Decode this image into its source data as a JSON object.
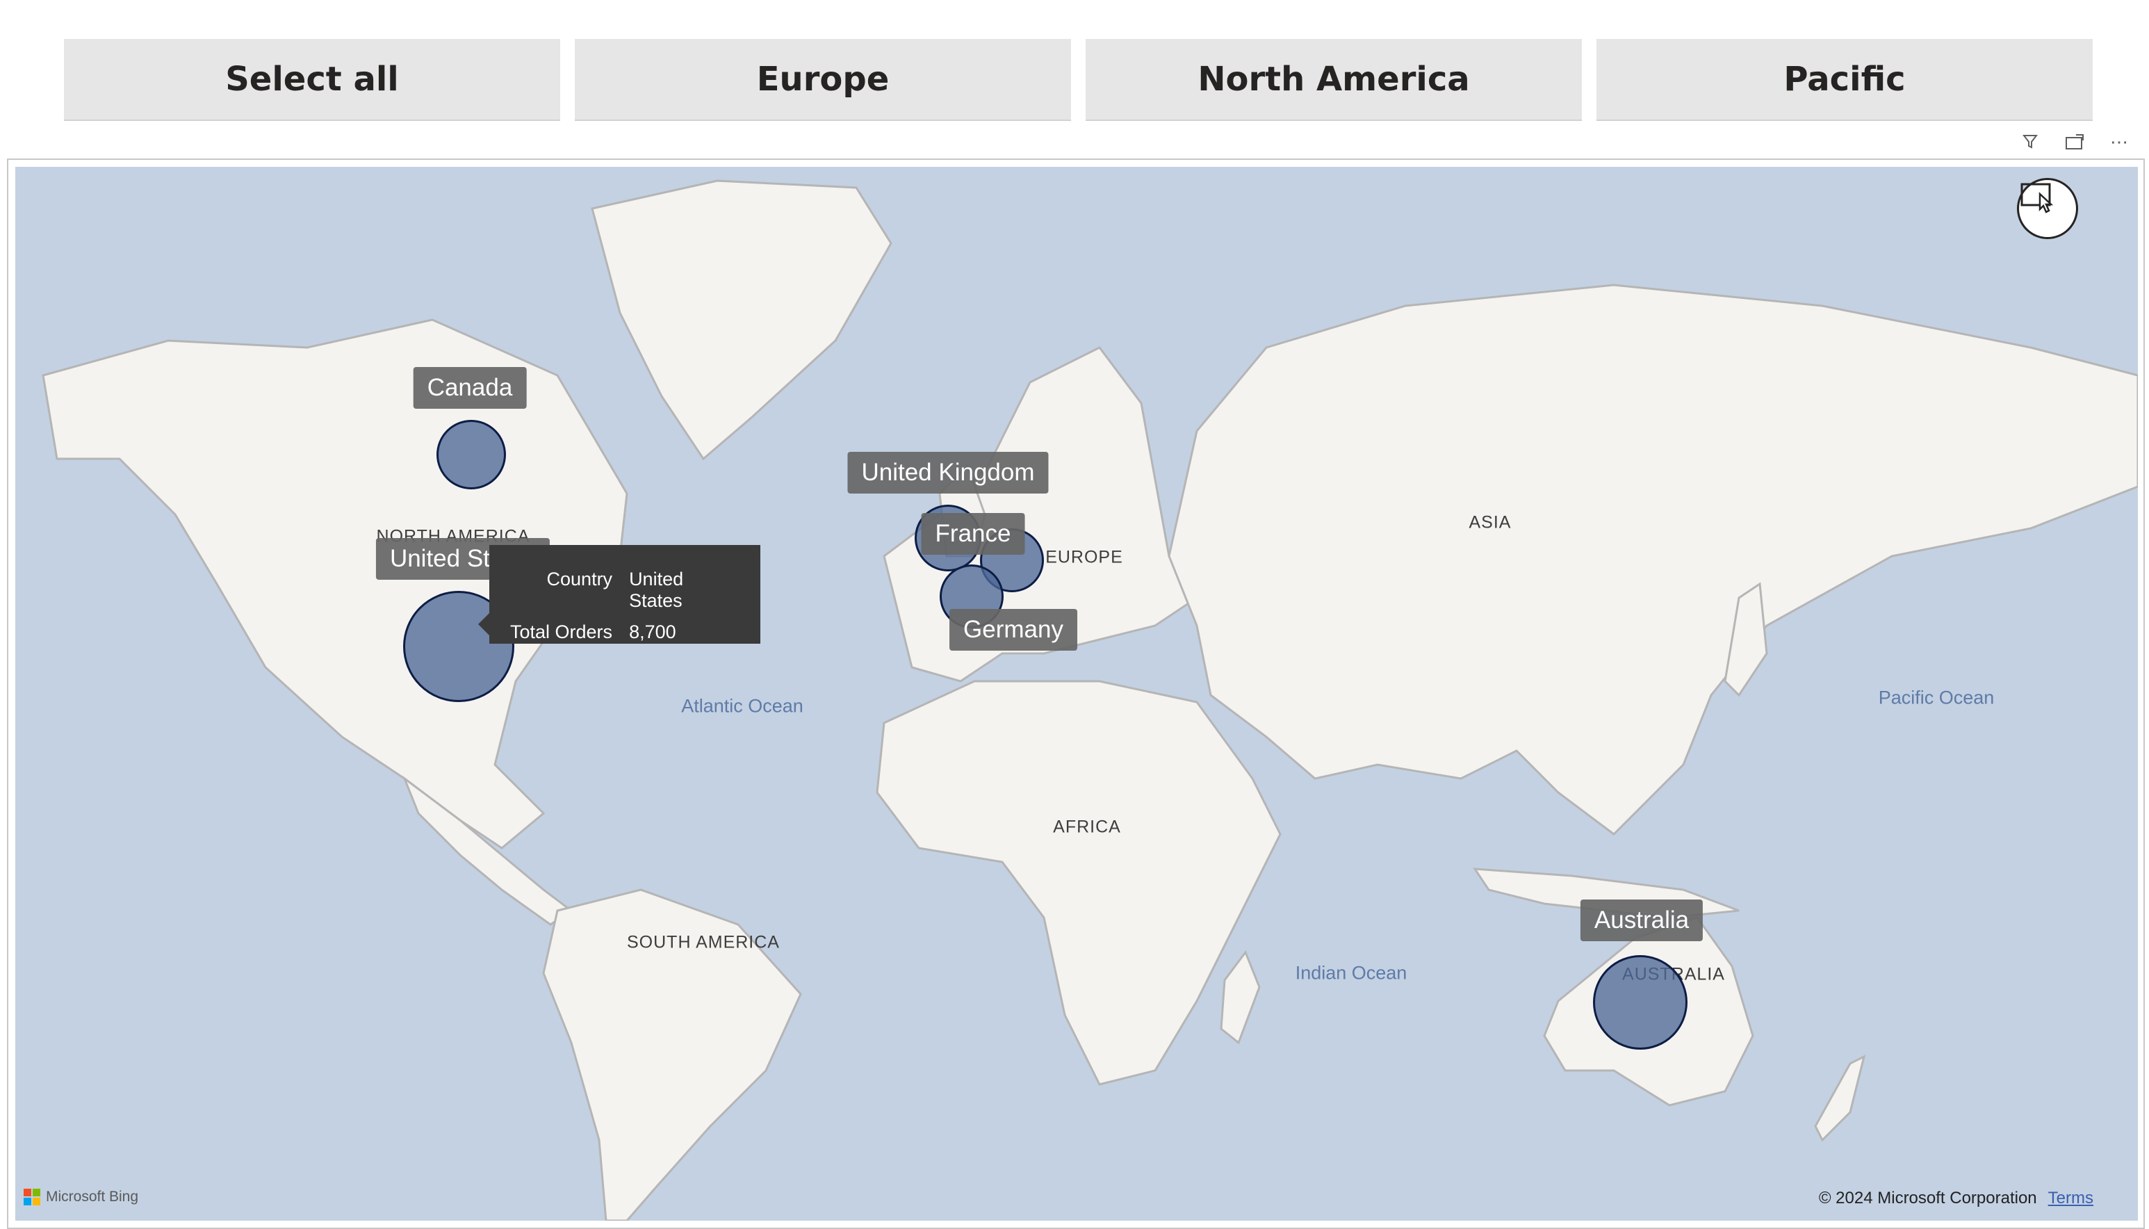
{
  "slicer": {
    "buttons": [
      "Select all",
      "Europe",
      "North America",
      "Pacific"
    ]
  },
  "visual_header": {
    "filter_icon": "filter-icon",
    "focus_mode_icon": "focus-mode-icon",
    "more_options": "⋯"
  },
  "map": {
    "region_labels": [
      "NORTH AMERICA",
      "EUROPE",
      "ASIA",
      "AFRICA",
      "SOUTH AMERICA",
      "AUSTRALIA"
    ],
    "ocean_labels": [
      "Atlantic Ocean",
      "Pacific Ocean",
      "Indian Ocean"
    ],
    "data_points": [
      {
        "country": "United States",
        "total_orders": 8700
      },
      {
        "country": "Canada"
      },
      {
        "country": "United Kingdom"
      },
      {
        "country": "France"
      },
      {
        "country": "Germany"
      },
      {
        "country": "Australia"
      }
    ],
    "tooltip": {
      "country_label": "Country",
      "country_value": "United States",
      "orders_label": "Total Orders",
      "orders_value": "8,700"
    },
    "attribution": {
      "brand": "Microsoft Bing",
      "copyright": "© 2024 Microsoft Corporation",
      "terms": "Terms"
    },
    "colors": {
      "water": "#c3d1e3",
      "land": "#f5f3f0",
      "bubble_fill": "#4d6896",
      "bubble_border": "#0d1d45",
      "label_bg": "#666666",
      "tooltip_bg": "#3a3a3a"
    }
  }
}
